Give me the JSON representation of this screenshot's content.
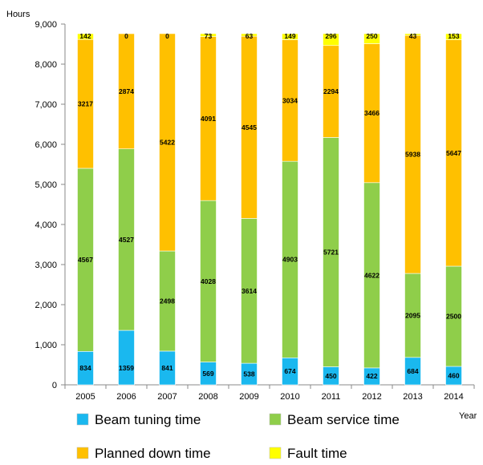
{
  "chart_data": {
    "type": "bar",
    "stacked": true,
    "categories": [
      "2005",
      "2006",
      "2007",
      "2008",
      "2009",
      "2010",
      "2011",
      "2012",
      "2013",
      "2014"
    ],
    "series": [
      {
        "name": "Beam tuning time",
        "color": "#1ab8ef",
        "values": [
          834,
          1359,
          841,
          569,
          538,
          674,
          450,
          422,
          684,
          460
        ]
      },
      {
        "name": "Beam service time",
        "color": "#8fce4a",
        "values": [
          4567,
          4527,
          2498,
          4028,
          3614,
          4903,
          5721,
          4622,
          2095,
          2500
        ]
      },
      {
        "name": "Planned down time",
        "color": "#ffc000",
        "values": [
          3217,
          2874,
          5422,
          4091,
          4545,
          3034,
          2294,
          3466,
          5938,
          5647
        ]
      },
      {
        "name": "Fault time",
        "color": "#ffff00",
        "values": [
          142,
          0,
          0,
          73,
          63,
          149,
          296,
          250,
          43,
          153
        ]
      }
    ],
    "ylabel": "Hours",
    "xlabel": "Year",
    "ylim": [
      0,
      9000
    ],
    "yticks": [
      "0",
      "1,000",
      "2,000",
      "3,000",
      "4,000",
      "5,000",
      "6,000",
      "7,000",
      "8,000",
      "9,000"
    ],
    "grid": false,
    "legend_position": "bottom"
  }
}
